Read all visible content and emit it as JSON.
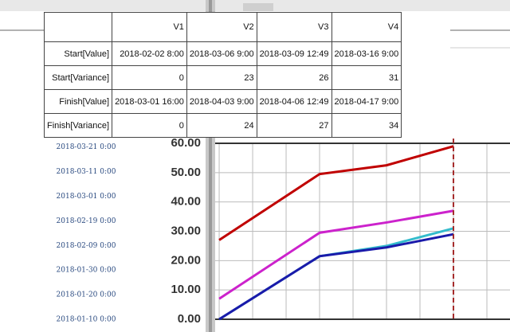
{
  "table": {
    "columns": [
      "V1",
      "V2",
      "V3",
      "V4"
    ],
    "rows": [
      {
        "label": "Start[Value]",
        "cells": [
          "2018-02-02 8:00",
          "2018-03-06 9:00",
          "2018-03-09 12:49",
          "2018-03-16 9:00"
        ]
      },
      {
        "label": "Start[Variance]",
        "cells": [
          "0",
          "23",
          "26",
          "31"
        ]
      },
      {
        "label": "Finish[Value]",
        "cells": [
          "2018-03-01 16:00",
          "2018-04-03 9:00",
          "2018-04-06 12:49",
          "2018-04-17 9:00"
        ]
      },
      {
        "label": "Finish[Variance]",
        "cells": [
          "0",
          "24",
          "27",
          "34"
        ]
      }
    ]
  },
  "chart_data": {
    "type": "line",
    "x": [
      0,
      3,
      5,
      7
    ],
    "xlim": [
      -0.12,
      8.69
    ],
    "xticks": [
      0,
      1,
      2,
      3,
      4,
      5,
      6,
      7,
      8
    ],
    "ylim": [
      0,
      60
    ],
    "yticks": [
      {
        "value": 0,
        "label": "0.00"
      },
      {
        "value": 10,
        "label": "10.00"
      },
      {
        "value": 20,
        "label": "20.00"
      },
      {
        "value": 30,
        "label": "30.00"
      },
      {
        "value": 40,
        "label": "40.00"
      },
      {
        "value": 50,
        "label": "50.00"
      },
      {
        "value": 60,
        "label": "60.00"
      }
    ],
    "y2lim": [
      0,
      71.5
    ],
    "y2ticks": [
      {
        "value": 0,
        "label": "2018-01-10 0:00"
      },
      {
        "value": 10,
        "label": "2018-01-20 0:00"
      },
      {
        "value": 20,
        "label": "2018-01-30 0:00"
      },
      {
        "value": 30,
        "label": "2018-02-09 0:00"
      },
      {
        "value": 40,
        "label": "2018-02-19 0:00"
      },
      {
        "value": 50,
        "label": "2018-03-01 0:00"
      },
      {
        "value": 60,
        "label": "2018-03-11 0:00"
      },
      {
        "value": 70,
        "label": "2018-03-21 0:00"
      }
    ],
    "grid": true,
    "vline": {
      "x": 7,
      "color": "#a52a2a"
    },
    "series": [
      {
        "color": "#c00000",
        "values": [
          27,
          49.5,
          52.5,
          59
        ]
      },
      {
        "color": "#cc22cc",
        "values": [
          7,
          29.5,
          33,
          37
        ]
      },
      {
        "color": "#33bbcc",
        "values": [
          0,
          21.5,
          25,
          31
        ]
      },
      {
        "color": "#1a1aaa",
        "values": [
          0,
          21.5,
          24.5,
          29
        ]
      }
    ]
  }
}
